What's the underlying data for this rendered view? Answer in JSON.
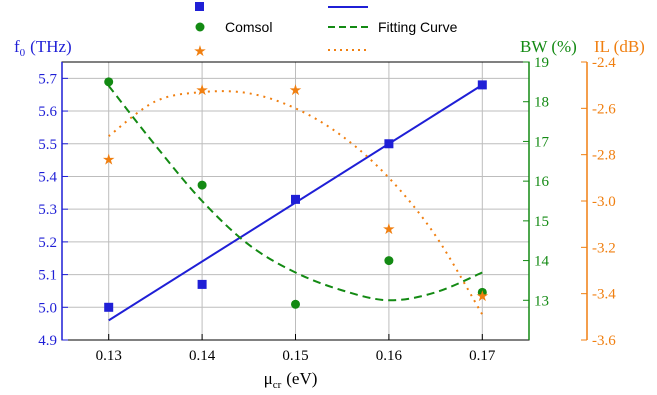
{
  "chart_data": {
    "type": "scatter",
    "x_axis": {
      "label": "μ",
      "label_sub": "cr",
      "label_unit": "(eV)",
      "range": [
        0.125,
        0.175
      ],
      "ticks": [
        "0.13",
        "0.14",
        "0.15",
        "0.16",
        "0.17"
      ],
      "tick_values": [
        0.13,
        0.14,
        0.15,
        0.16,
        0.17
      ],
      "grid": true
    },
    "y_axes": [
      {
        "id": "f0",
        "label": "f",
        "label_sub": "0",
        "label_unit": "(THz)",
        "side": "left",
        "color": "#1f1fd6",
        "range": [
          4.9,
          5.75
        ],
        "ticks": [
          "4.9",
          "5.0",
          "5.1",
          "5.2",
          "5.3",
          "5.4",
          "5.5",
          "5.6",
          "5.7"
        ],
        "tick_values": [
          4.9,
          5.0,
          5.1,
          5.2,
          5.3,
          5.4,
          5.5,
          5.6,
          5.7
        ],
        "grid": true
      },
      {
        "id": "bw",
        "label": "BW (%)",
        "side": "right",
        "color": "#138a13",
        "range": [
          12,
          19
        ],
        "ticks": [
          "13",
          "14",
          "15",
          "16",
          "17",
          "18",
          "19"
        ],
        "tick_values": [
          13,
          14,
          15,
          16,
          17,
          18,
          19
        ]
      },
      {
        "id": "il",
        "label": "IL (dB)",
        "side": "right",
        "color": "#f07f10",
        "range": [
          -3.6,
          -2.4
        ],
        "ticks": [
          "-2.4",
          "-2.6",
          "-2.8",
          "-3.0",
          "-3.2",
          "-3.4",
          "-3.6"
        ],
        "tick_values": [
          -2.4,
          -2.6,
          -2.8,
          -3.0,
          -3.2,
          -3.4,
          -3.6
        ]
      }
    ],
    "series": [
      {
        "axis": "f0",
        "kind": "markers",
        "marker": "square",
        "color": "#1f1fd6",
        "x": [
          0.13,
          0.14,
          0.15,
          0.16,
          0.17
        ],
        "y": [
          5.0,
          5.07,
          5.33,
          5.5,
          5.68
        ]
      },
      {
        "axis": "bw",
        "kind": "markers",
        "marker": "circle",
        "color": "#138a13",
        "x": [
          0.13,
          0.14,
          0.15,
          0.16,
          0.17
        ],
        "y": [
          18.5,
          15.9,
          12.9,
          14.0,
          13.2
        ]
      },
      {
        "axis": "il",
        "kind": "markers",
        "marker": "star",
        "color": "#f07f10",
        "x": [
          0.13,
          0.14,
          0.15,
          0.16,
          0.17
        ],
        "y": [
          -2.82,
          -2.52,
          -2.52,
          -3.12,
          -3.41
        ]
      },
      {
        "axis": "f0",
        "kind": "line",
        "dash": "solid",
        "color": "#1f1fd6",
        "x": [
          0.13,
          0.17
        ],
        "y": [
          4.96,
          5.68
        ]
      },
      {
        "axis": "bw",
        "kind": "line",
        "dash": "dashed",
        "color": "#138a13",
        "x": [
          0.13,
          0.135,
          0.14,
          0.145,
          0.15,
          0.155,
          0.16,
          0.165,
          0.17
        ],
        "y": [
          18.4,
          16.9,
          15.5,
          14.4,
          13.7,
          13.25,
          13.0,
          13.2,
          13.7
        ]
      },
      {
        "axis": "il",
        "kind": "line",
        "dash": "dotted",
        "color": "#f07f10",
        "x": [
          0.13,
          0.135,
          0.14,
          0.145,
          0.15,
          0.155,
          0.16,
          0.165,
          0.17
        ],
        "y": [
          -2.72,
          -2.57,
          -2.53,
          -2.535,
          -2.6,
          -2.72,
          -2.9,
          -3.15,
          -3.49
        ]
      }
    ],
    "legend": {
      "placement": "top",
      "row1_label": "Comsol",
      "row2_label": "Fitting Curve"
    }
  }
}
